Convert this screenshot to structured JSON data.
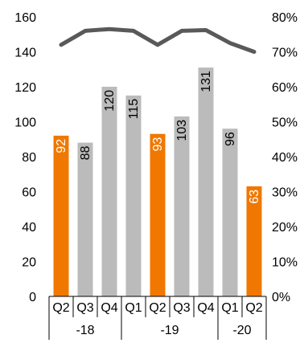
{
  "chart_data": {
    "type": "bar",
    "categories": [
      "Q2",
      "Q3",
      "Q4",
      "Q1",
      "Q2",
      "Q3",
      "Q4",
      "Q1",
      "Q2"
    ],
    "groups": [
      {
        "label": "-18",
        "span": 3
      },
      {
        "label": "-19",
        "span": 4
      },
      {
        "label": "-20",
        "span": 2
      }
    ],
    "series": [
      {
        "axis": "left",
        "type": "bar",
        "values": [
          92,
          88,
          120,
          115,
          93,
          103,
          131,
          96,
          63
        ],
        "highlight": [
          true,
          false,
          false,
          false,
          true,
          false,
          false,
          false,
          true
        ]
      },
      {
        "axis": "right",
        "type": "line",
        "values": [
          0.72,
          0.76,
          0.765,
          0.76,
          0.72,
          0.76,
          0.762,
          0.725,
          0.7
        ]
      }
    ],
    "ylim_left": [
      0,
      160
    ],
    "yticks_left": [
      0,
      20,
      40,
      60,
      80,
      100,
      120,
      140,
      160
    ],
    "ylim_right": [
      0,
      0.8
    ],
    "yticks_right": [
      "0%",
      "10%",
      "20%",
      "30%",
      "40%",
      "50%",
      "60%",
      "70%",
      "80%"
    ],
    "grid": false,
    "legend": "none",
    "colors": {
      "highlight_bar": "#F07800",
      "bar": "#BBBBBB",
      "line": "#595959",
      "axis": "#000000",
      "highlight_label": "#FFFFFF",
      "bar_label": "#000000"
    }
  }
}
